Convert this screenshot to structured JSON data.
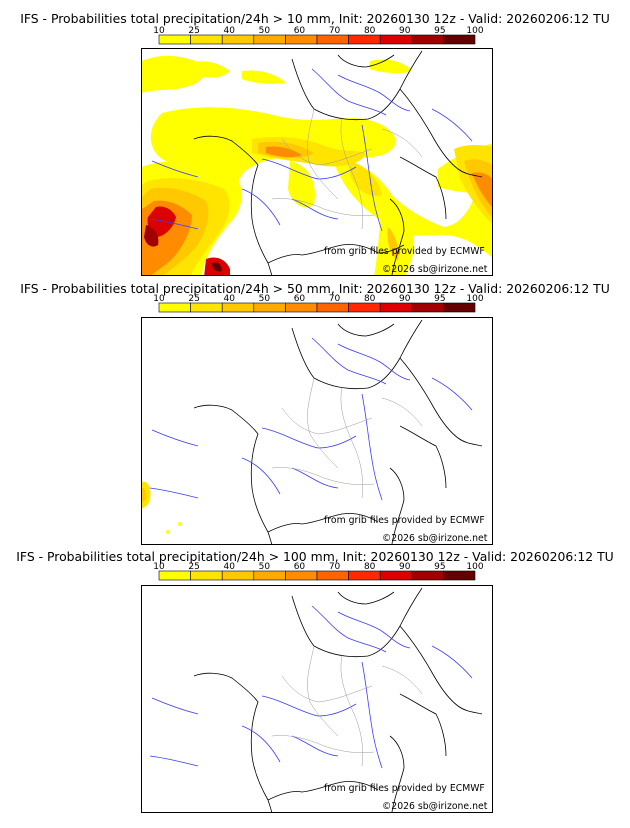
{
  "colorbar": {
    "ticks": [
      "10",
      "25",
      "40",
      "50",
      "60",
      "70",
      "80",
      "90",
      "95",
      "100"
    ],
    "colors": [
      "#ffff00",
      "#ffe400",
      "#ffc800",
      "#ffaa00",
      "#ff8c00",
      "#ff6400",
      "#ff2800",
      "#dc0000",
      "#a00000",
      "#640000"
    ]
  },
  "panels": [
    {
      "title": "IFS - Probabilities total precipitation/24h > 10 mm, Init: 20260130 12z - Valid: 20260206:12 TU",
      "threshold_mm": 10,
      "credit_grib": "from grib files provided by ECMWF",
      "credit_copy": "©2026 sb@irizone.net"
    },
    {
      "title": "IFS - Probabilities total precipitation/24h > 50 mm, Init: 20260130 12z - Valid: 20260206:12 TU",
      "threshold_mm": 50,
      "credit_grib": "from grib files provided by ECMWF",
      "credit_copy": "©2026 sb@irizone.net"
    },
    {
      "title": "IFS - Probabilities total precipitation/24h > 100 mm, Init: 20260130 12z - Valid: 20260206:12 TU",
      "threshold_mm": 100,
      "credit_grib": "from grib files provided by ECMWF",
      "credit_copy": "©2026 sb@irizone.net"
    }
  ]
}
